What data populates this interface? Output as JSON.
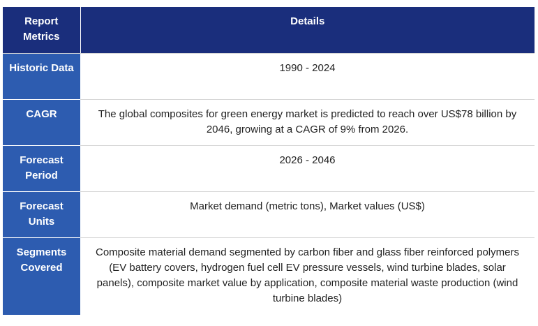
{
  "table": {
    "headers": [
      "Report Metrics",
      "Details"
    ],
    "rows": [
      {
        "metric": "Historic Data",
        "details": "1990 - 2024"
      },
      {
        "metric": "CAGR",
        "details": "The global composites for green energy market is predicted to reach over US$78 billion by 2046, growing at a CAGR of 9% from 2026."
      },
      {
        "metric": "Forecast Period",
        "details": "2026 - 2046"
      },
      {
        "metric": "Forecast Units",
        "details": "Market demand (metric tons), Market values (US$)"
      },
      {
        "metric": "Segments Covered",
        "details": "Composite material demand segmented by carbon fiber and glass fiber reinforced polymers (EV battery covers, hydrogen fuel cell EV pressure vessels, wind turbine blades, solar panels), composite market value by application, composite material waste production (wind turbine blades)"
      }
    ]
  },
  "colors": {
    "header_bg": "#1a2e7c",
    "label_bg": "#2d5cb0",
    "text": "#222222"
  }
}
